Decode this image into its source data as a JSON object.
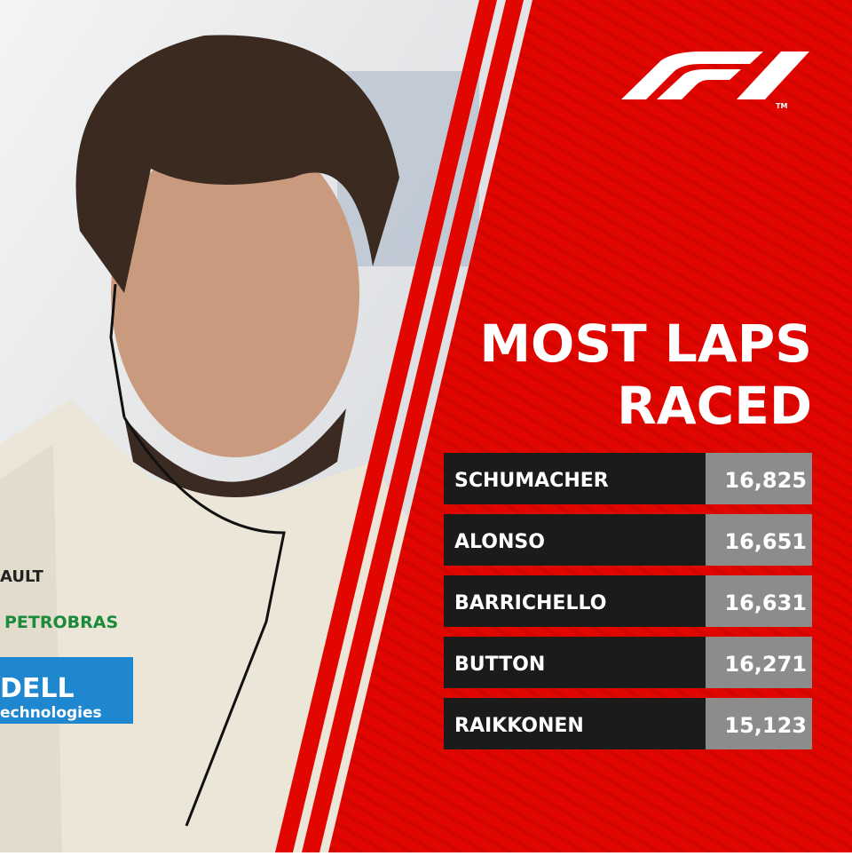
{
  "title": {
    "line1": "MOST LAPS",
    "line2": "RACED"
  },
  "logo": {
    "trademark": "TM"
  },
  "photo": {
    "labels": [
      "AULT",
      "PETROBRAS",
      "DELL",
      "echnologies"
    ]
  },
  "table": {
    "rows": [
      [
        "SCHUMACHER",
        "16,825"
      ],
      [
        "ALONSO",
        "16,651"
      ],
      [
        "BARRICHELLO",
        "16,631"
      ],
      [
        "BUTTON",
        "16,271"
      ],
      [
        "RAIKKONEN",
        "15,123"
      ]
    ]
  }
}
